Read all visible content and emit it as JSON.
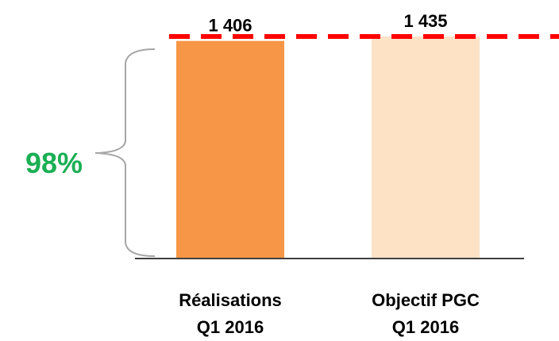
{
  "chart_data": {
    "type": "bar",
    "categories": [
      "Réalisations\nQ1 2016",
      "Objectif PGC\nQ1 2016"
    ],
    "values": [
      1406,
      1435
    ],
    "value_labels": [
      "1 406",
      "1 435"
    ],
    "colors": [
      "#f79646",
      "#fde2c6"
    ],
    "target_line_color": "#ff0000",
    "annotation": "98%",
    "annotation_color": "#1aaf54"
  }
}
